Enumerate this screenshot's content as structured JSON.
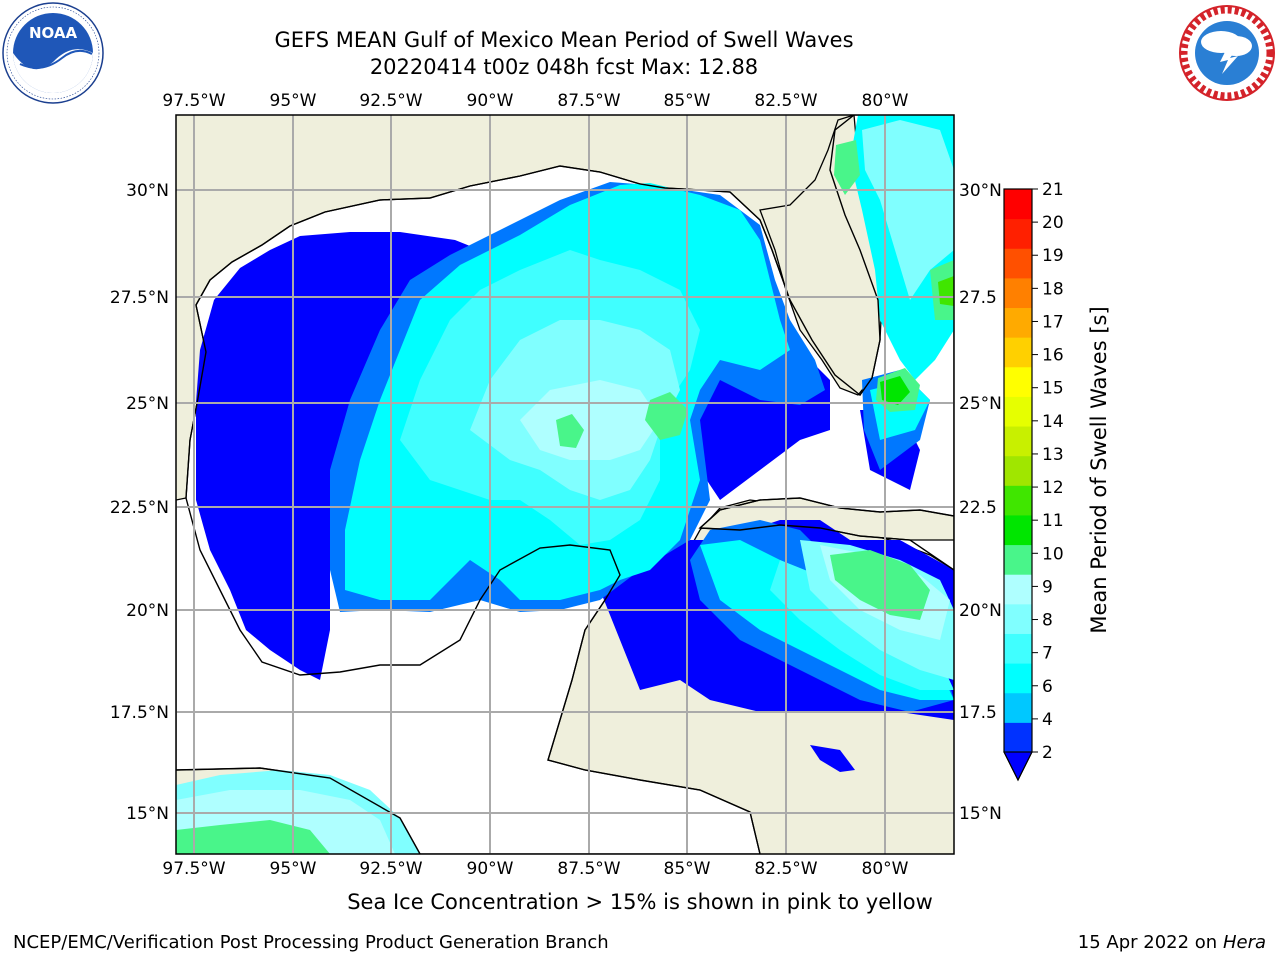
{
  "header": {
    "title": "GEFS MEAN Gulf of Mexico Mean Period of Swell Waves",
    "subtitle": "20220414 t00z 048h fcst   Max: 12.88"
  },
  "logos": {
    "left_text": "NOAA",
    "left_ring_text": "NATIONAL OCEANIC AND ATMOSPHERIC ADMINISTRATION · U.S. DEPARTMENT OF COMMERCE",
    "right_ring_text": "NATIONAL WEATHER SERVICE"
  },
  "map": {
    "lon_labels": [
      "97.5°W",
      "95°W",
      "92.5°W",
      "90°W",
      "87.5°W",
      "85°W",
      "82.5°W",
      "80°W"
    ],
    "lat_labels_left": [
      "30°N",
      "27.5°N",
      "25°N",
      "22.5°N",
      "20°N",
      "17.5°N",
      "15°N"
    ],
    "lat_labels_right": [
      "30°N",
      "27.5",
      "25°N",
      "22.5",
      "20°N",
      "17.5",
      "15°N"
    ]
  },
  "colorbar": {
    "label": "Mean Period of Swell Waves [s]",
    "ticks": [
      "2",
      "4",
      "6",
      "7",
      "8",
      "9",
      "10",
      "11",
      "12",
      "13",
      "14",
      "15",
      "16",
      "17",
      "18",
      "19",
      "20",
      "21"
    ],
    "colors": [
      "#0032ff",
      "#00c8ff",
      "#00ffff",
      "#40ffff",
      "#80ffff",
      "#afffff",
      "#49f58a",
      "#00e600",
      "#40e600",
      "#a0e600",
      "#c8f000",
      "#e6ff00",
      "#ffff00",
      "#ffd000",
      "#ffaa00",
      "#ff8000",
      "#ff5000",
      "#ff2000",
      "#ff0000"
    ],
    "under_color": "#0000ff"
  },
  "caption": "Sea Ice Concentration > 15% is shown in pink to yellow",
  "footer": {
    "left": "NCEP/EMC/Verification Post Processing Product Generation Branch",
    "date": "15 Apr 2022 on ",
    "machine": "Hera"
  }
}
